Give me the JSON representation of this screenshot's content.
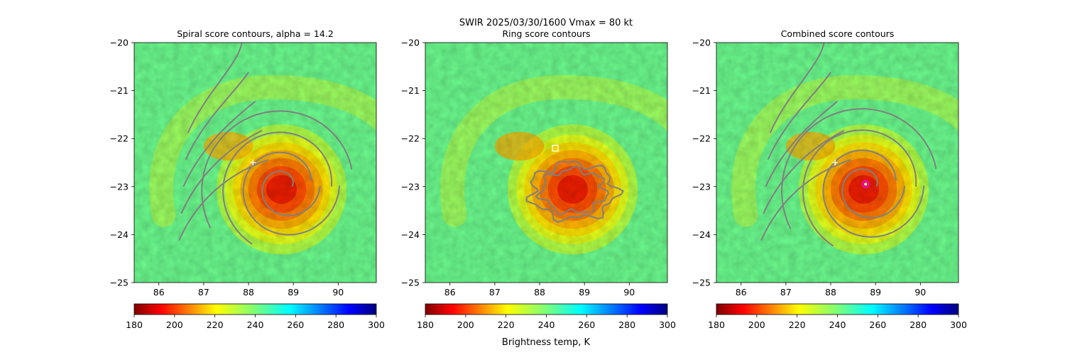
{
  "figure": {
    "suptitle_line1": "SWIR  2025/03/30/1600    Vmax = 80 kt",
    "colorbar_label": "Brightness temp, K"
  },
  "colors": {
    "contour": "#808080",
    "center_marker": "#ffffff",
    "combined_center_marker": "#ff00ff"
  },
  "colormap": "jet_r",
  "chart_data": [
    {
      "type": "heatmap",
      "title": "Spiral score contours, alpha = 14.2",
      "xlim": [
        85.45,
        90.85
      ],
      "ylim": [
        -25,
        -20
      ],
      "xticks": [
        86,
        87,
        88,
        89,
        90
      ],
      "yticks": [
        -20,
        -21,
        -22,
        -23,
        -24,
        -25
      ],
      "xtick_labels": [
        "86",
        "87",
        "88",
        "89",
        "90"
      ],
      "ytick_labels": [
        "−20",
        "−21",
        "−22",
        "−23",
        "−24",
        "−25"
      ],
      "storm_center": [
        88.8,
        -23.0
      ],
      "markers": [
        {
          "symbol": "+",
          "x": 88.1,
          "y": -22.5
        }
      ],
      "contour_style": "spiral",
      "colorbar": {
        "min": 180,
        "max": 300,
        "ticks": [
          "180",
          "200",
          "220",
          "240",
          "260",
          "280",
          "300"
        ],
        "cmap": "jet_r"
      }
    },
    {
      "type": "heatmap",
      "title": "Ring score contours",
      "xlim": [
        85.45,
        90.85
      ],
      "ylim": [
        -25,
        -20
      ],
      "xticks": [
        86,
        87,
        88,
        89,
        90
      ],
      "yticks": [
        -20,
        -21,
        -22,
        -23,
        -24,
        -25
      ],
      "xtick_labels": [
        "86",
        "87",
        "88",
        "89",
        "90"
      ],
      "ytick_labels": [
        "−20",
        "−21",
        "−22",
        "−23",
        "−24",
        "−25"
      ],
      "storm_center": [
        88.8,
        -23.0
      ],
      "markers": [
        {
          "symbol": "square",
          "x": 88.35,
          "y": -22.2
        }
      ],
      "contour_style": "ring",
      "colorbar": {
        "min": 180,
        "max": 300,
        "ticks": [
          "180",
          "200",
          "220",
          "240",
          "260",
          "280",
          "300"
        ],
        "cmap": "jet_r"
      }
    },
    {
      "type": "heatmap",
      "title": "Combined score contours",
      "xlim": [
        85.45,
        90.85
      ],
      "ylim": [
        -25,
        -20
      ],
      "xticks": [
        86,
        87,
        88,
        89,
        90
      ],
      "yticks": [
        -20,
        -21,
        -22,
        -23,
        -24,
        -25
      ],
      "xtick_labels": [
        "86",
        "87",
        "88",
        "89",
        "90"
      ],
      "ytick_labels": [
        "−20",
        "−21",
        "−22",
        "−23",
        "−24",
        "−25"
      ],
      "storm_center": [
        88.8,
        -23.0
      ],
      "markers": [
        {
          "symbol": "+",
          "x": 88.1,
          "y": -22.5
        },
        {
          "symbol": "circle",
          "x": 88.78,
          "y": -22.95
        }
      ],
      "contour_style": "combined",
      "colorbar": {
        "min": 180,
        "max": 300,
        "ticks": [
          "180",
          "200",
          "220",
          "240",
          "260",
          "280",
          "300"
        ],
        "cmap": "jet_r"
      }
    }
  ]
}
